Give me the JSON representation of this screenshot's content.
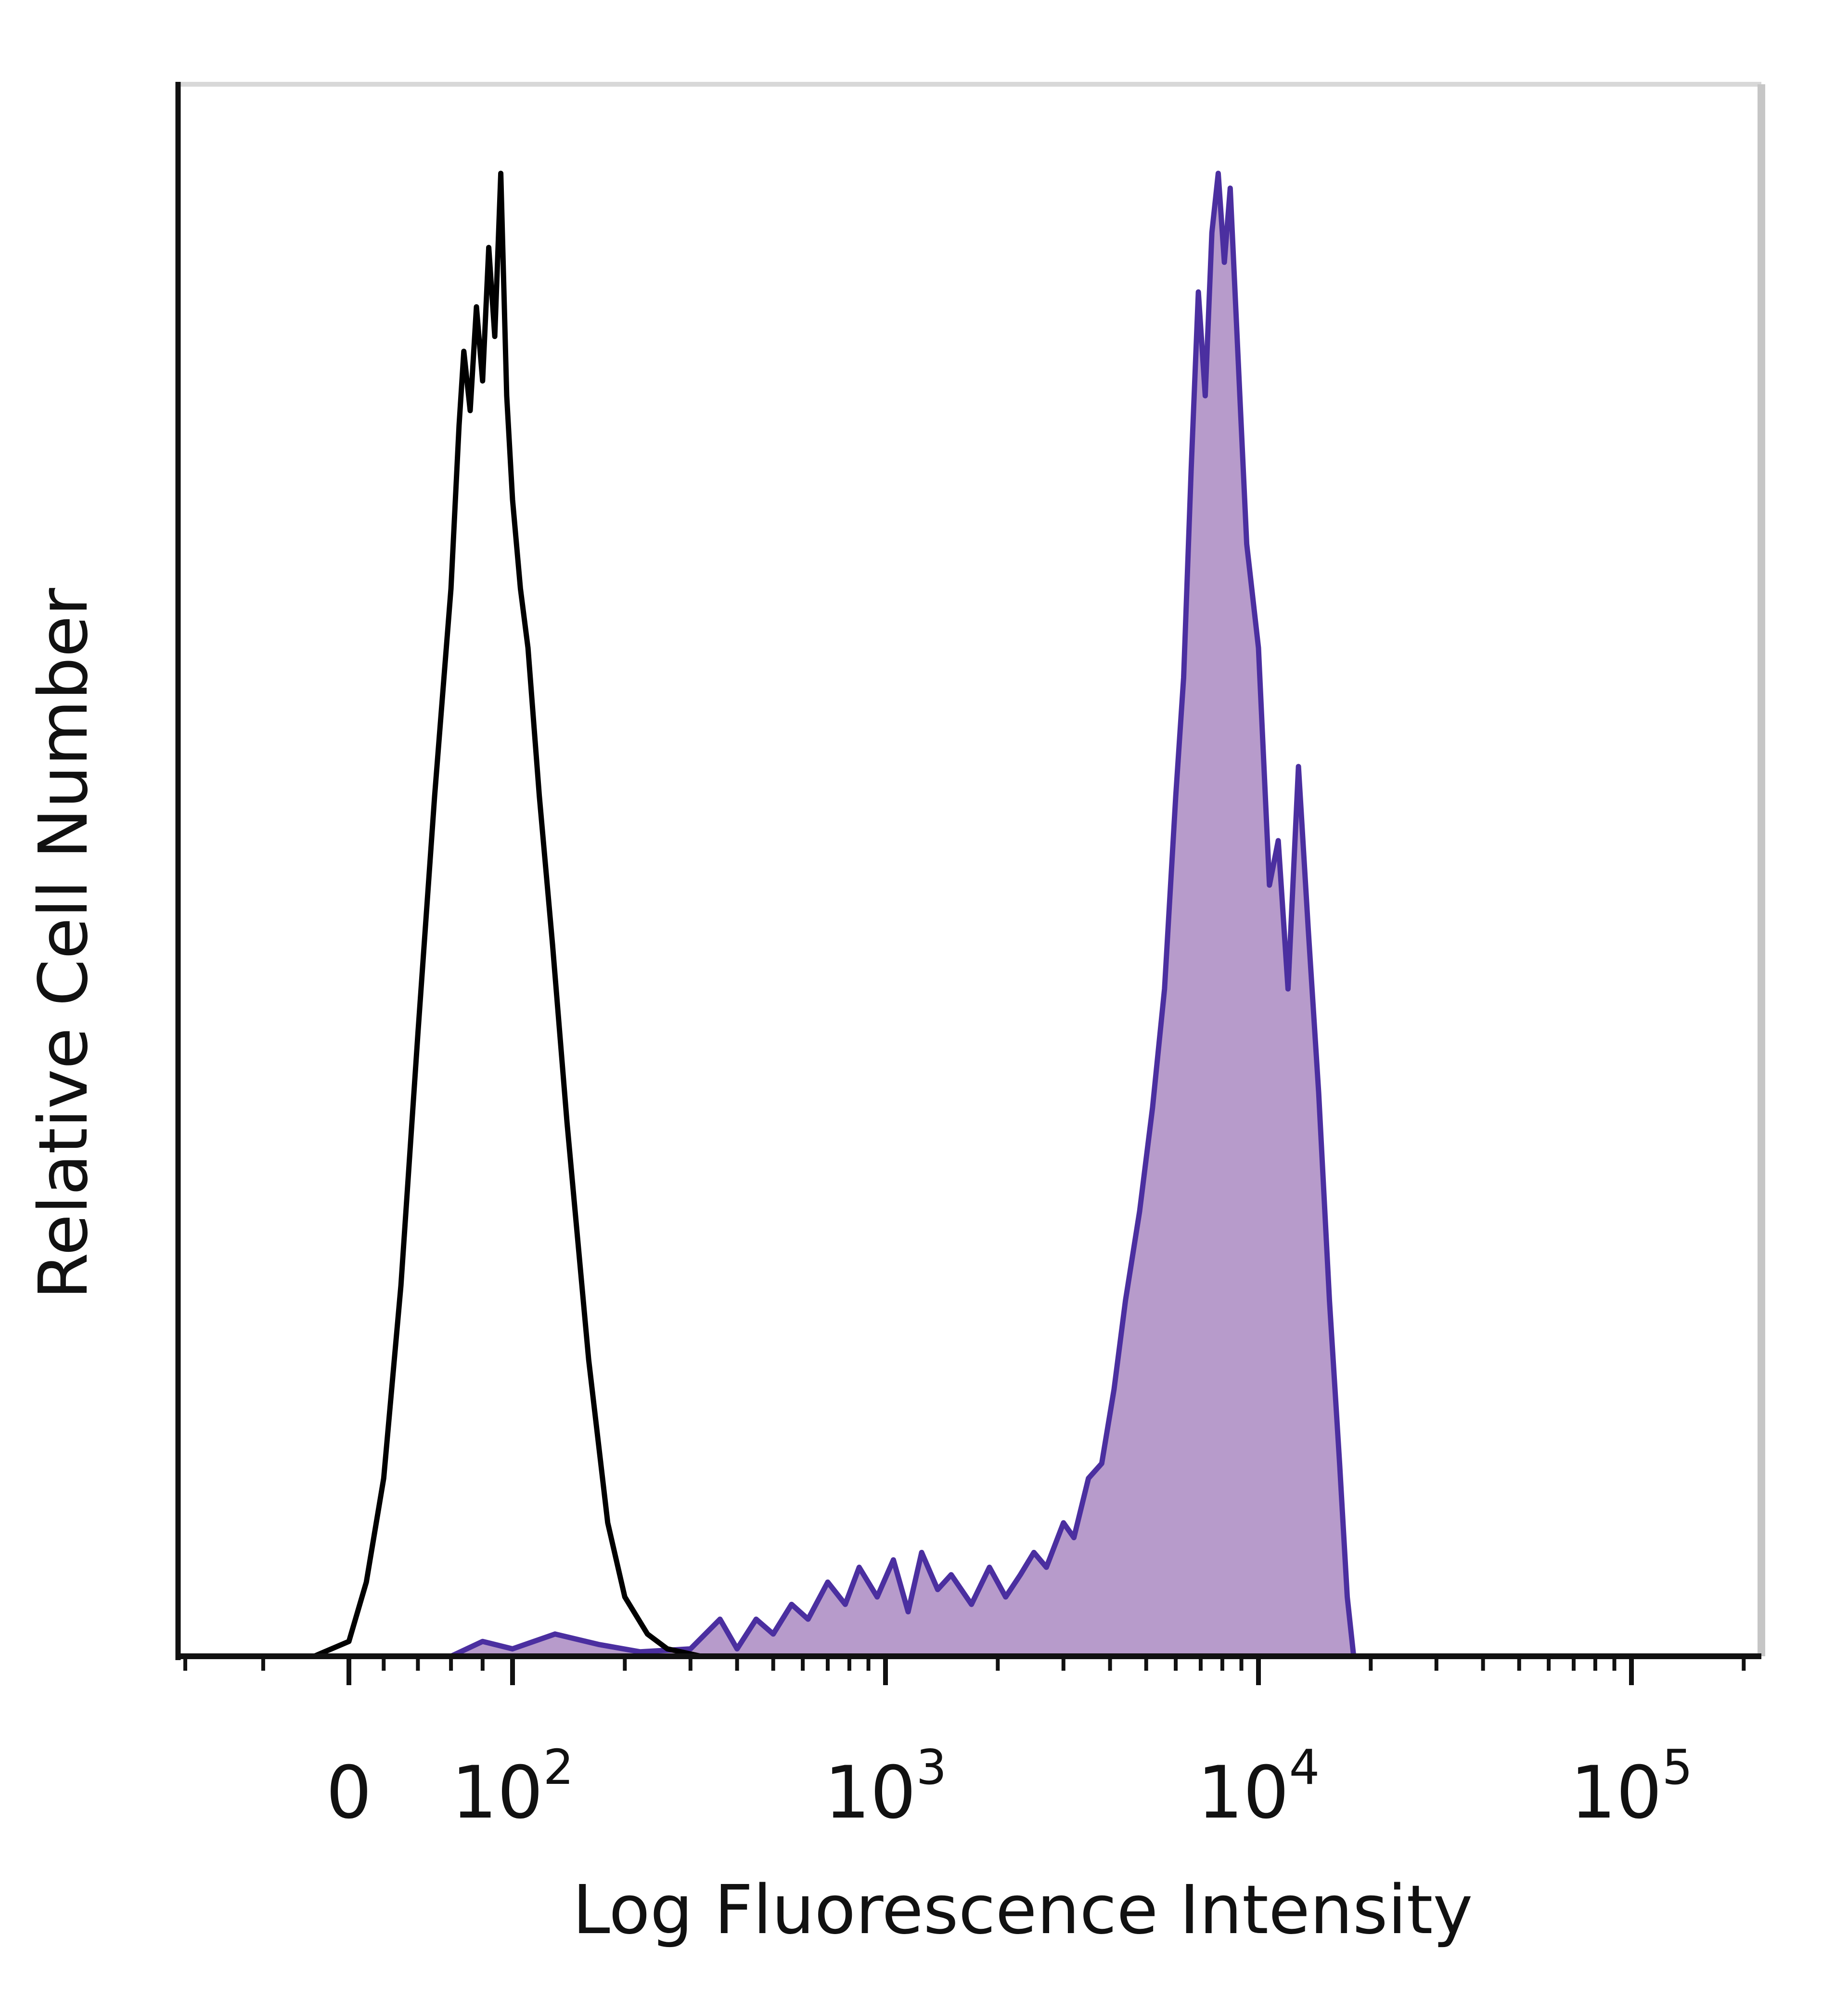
{
  "chart_data": {
    "type": "area",
    "xlabel": "Log Fluorescence Intensity",
    "ylabel": "Relative Cell Number",
    "x_scale": "biexponential",
    "x_ticks": [
      {
        "value": 0,
        "base": "0",
        "exp": ""
      },
      {
        "value": 100,
        "base": "10",
        "exp": "2"
      },
      {
        "value": 1000,
        "base": "10",
        "exp": "3"
      },
      {
        "value": 10000,
        "base": "10",
        "exp": "4"
      },
      {
        "value": 100000,
        "base": "10",
        "exp": "5"
      }
    ],
    "xlim": [
      -150,
      250000
    ],
    "ylim": [
      0,
      100
    ],
    "grid": false,
    "legend": "none",
    "series": [
      {
        "color": "#000000",
        "fill": "none",
        "points": [
          [
            -150,
            0
          ],
          [
            -20,
            0
          ],
          [
            0,
            1
          ],
          [
            10,
            5
          ],
          [
            20,
            12
          ],
          [
            30,
            25
          ],
          [
            40,
            42
          ],
          [
            50,
            58
          ],
          [
            60,
            72
          ],
          [
            65,
            83
          ],
          [
            68,
            88
          ],
          [
            72,
            84
          ],
          [
            76,
            91
          ],
          [
            80,
            86
          ],
          [
            84,
            95
          ],
          [
            88,
            89
          ],
          [
            92,
            100
          ],
          [
            96,
            85
          ],
          [
            100,
            78
          ],
          [
            105,
            72
          ],
          [
            110,
            68
          ],
          [
            118,
            58
          ],
          [
            128,
            48
          ],
          [
            140,
            36
          ],
          [
            160,
            20
          ],
          [
            180,
            9
          ],
          [
            200,
            4
          ],
          [
            230,
            1.5
          ],
          [
            260,
            0.5
          ],
          [
            320,
            0
          ],
          [
            250000,
            0
          ]
        ]
      },
      {
        "color": "#4b2fa0",
        "fill": "#b79bcb",
        "points": [
          [
            -150,
            0
          ],
          [
            0,
            0
          ],
          [
            60,
            0
          ],
          [
            80,
            1
          ],
          [
            100,
            0.5
          ],
          [
            130,
            1.5
          ],
          [
            170,
            0.8
          ],
          [
            220,
            0.3
          ],
          [
            300,
            0.5
          ],
          [
            360,
            2.5
          ],
          [
            400,
            0.5
          ],
          [
            450,
            2.5
          ],
          [
            500,
            1.5
          ],
          [
            560,
            3.5
          ],
          [
            620,
            2.5
          ],
          [
            700,
            5
          ],
          [
            780,
            3.5
          ],
          [
            850,
            6
          ],
          [
            950,
            4
          ],
          [
            1050,
            6.5
          ],
          [
            1150,
            3
          ],
          [
            1250,
            7
          ],
          [
            1380,
            4.5
          ],
          [
            1500,
            5.5
          ],
          [
            1700,
            3.5
          ],
          [
            1900,
            6
          ],
          [
            2100,
            4
          ],
          [
            2300,
            5.5
          ],
          [
            2500,
            7
          ],
          [
            2700,
            6
          ],
          [
            3000,
            9
          ],
          [
            3200,
            8
          ],
          [
            3500,
            12
          ],
          [
            3800,
            13
          ],
          [
            4100,
            18
          ],
          [
            4400,
            24
          ],
          [
            4800,
            30
          ],
          [
            5200,
            37
          ],
          [
            5600,
            45
          ],
          [
            6000,
            58
          ],
          [
            6300,
            66
          ],
          [
            6600,
            80
          ],
          [
            6900,
            92
          ],
          [
            7200,
            85
          ],
          [
            7500,
            96
          ],
          [
            7800,
            100
          ],
          [
            8100,
            94
          ],
          [
            8400,
            99
          ],
          [
            8800,
            88
          ],
          [
            9300,
            75
          ],
          [
            10000,
            68
          ],
          [
            10700,
            52
          ],
          [
            11300,
            55
          ],
          [
            12000,
            45
          ],
          [
            12800,
            60
          ],
          [
            13600,
            49
          ],
          [
            14500,
            38
          ],
          [
            15500,
            24
          ],
          [
            16500,
            13
          ],
          [
            17300,
            4
          ],
          [
            18000,
            0
          ],
          [
            250000,
            0
          ]
        ]
      }
    ]
  }
}
